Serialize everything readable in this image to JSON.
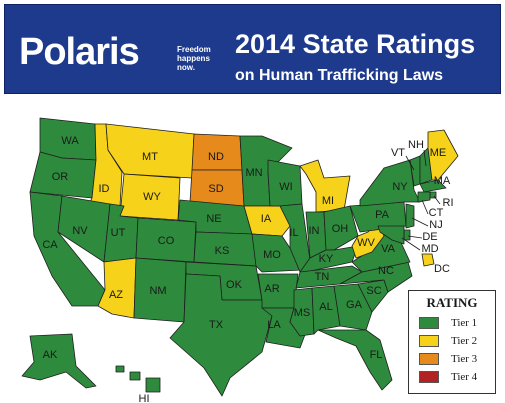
{
  "header": {
    "brand": "Polaris",
    "tagline": "Freedom happens now.",
    "title_line1": "2014 State Ratings",
    "title_line2": "on Human Trafficking Laws"
  },
  "colors": {
    "tier1": "#2e8b3d",
    "tier2": "#f7d21a",
    "tier3": "#e68a1c",
    "tier4": "#b22222",
    "header_bg": "#1e3a8c"
  },
  "legend": {
    "title": "RATING",
    "items": [
      {
        "label": "Tier 1",
        "tier": 1
      },
      {
        "label": "Tier 2",
        "tier": 2
      },
      {
        "label": "Tier 3",
        "tier": 3
      },
      {
        "label": "Tier 4",
        "tier": 4
      }
    ]
  },
  "states": {
    "WA": 1,
    "OR": 1,
    "CA": 1,
    "ID": 2,
    "NV": 1,
    "MT": 2,
    "WY": 2,
    "UT": 1,
    "AZ": 2,
    "CO": 1,
    "NM": 1,
    "ND": 3,
    "SD": 3,
    "NE": 1,
    "KS": 1,
    "OK": 1,
    "TX": 1,
    "MN": 1,
    "IA": 2,
    "MO": 1,
    "AR": 1,
    "LA": 1,
    "WI": 1,
    "IL": 1,
    "MI": 2,
    "IN": 1,
    "OH": 1,
    "KY": 1,
    "TN": 1,
    "MS": 1,
    "AL": 1,
    "GA": 1,
    "FL": 1,
    "SC": 1,
    "NC": 1,
    "VA": 1,
    "WV": 2,
    "PA": 1,
    "NY": 1,
    "VT": 1,
    "NH": 1,
    "ME": 2,
    "MA": 1,
    "RI": 1,
    "CT": 1,
    "NJ": 1,
    "DE": 1,
    "MD": 1,
    "DC": 2,
    "AK": 1,
    "HI": 1
  },
  "labels": [
    "WA",
    "OR",
    "CA",
    "ID",
    "NV",
    "MT",
    "WY",
    "UT",
    "AZ",
    "CO",
    "NM",
    "ND",
    "SD",
    "NE",
    "KS",
    "OK",
    "TX",
    "MN",
    "IA",
    "MO",
    "AR",
    "LA",
    "WI",
    "IL",
    "MI",
    "IN",
    "OH",
    "KY",
    "TN",
    "MS",
    "AL",
    "GA",
    "FL",
    "SC",
    "NC",
    "VA",
    "WV",
    "PA",
    "NY",
    "VT",
    "NH",
    "ME",
    "MA",
    "RI",
    "CT",
    "NJ",
    "DE",
    "MD",
    "DC",
    "AK",
    "HI"
  ]
}
